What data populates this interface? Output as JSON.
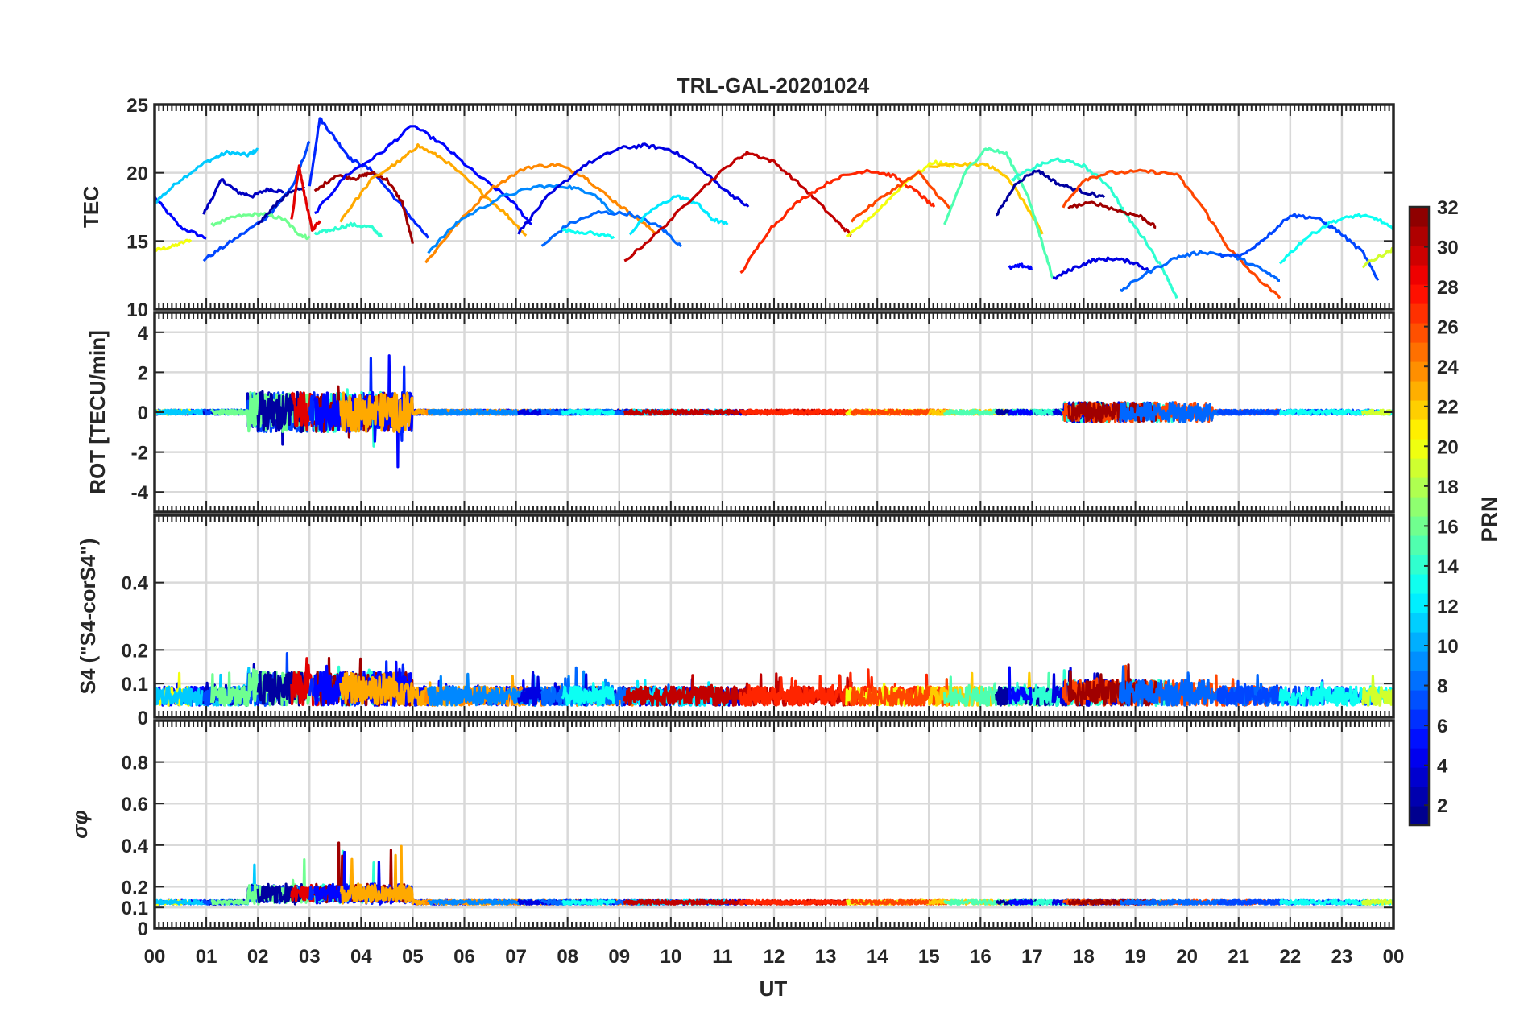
{
  "chart_data": {
    "type": "line",
    "title": "TRL-GAL-20201024",
    "xlabel": "UT",
    "xlim": [
      0,
      24
    ],
    "x_ticks": [
      "00",
      "01",
      "02",
      "03",
      "04",
      "05",
      "06",
      "07",
      "08",
      "09",
      "10",
      "11",
      "12",
      "13",
      "14",
      "15",
      "16",
      "17",
      "18",
      "19",
      "20",
      "21",
      "22",
      "23",
      "00"
    ],
    "grid": true,
    "colormap": "jet",
    "colorbar": {
      "label": "PRN",
      "range": [
        1,
        32
      ],
      "levels": 32,
      "ticks": [
        "2",
        "4",
        "6",
        "8",
        "10",
        "12",
        "14",
        "16",
        "18",
        "20",
        "22",
        "24",
        "26",
        "28",
        "30",
        "32"
      ],
      "placement": "right"
    },
    "panels": [
      {
        "id": "tec",
        "ylabel": "TEC",
        "ylim": [
          10,
          25
        ],
        "y_ticks": [
          "10",
          "15",
          "20",
          "25"
        ],
        "series": [
          {
            "prn": 5,
            "x": [
              0.0,
              0.5,
              1.0
            ],
            "y": [
              18.2,
              16.0,
              15.2
            ]
          },
          {
            "prn": 20,
            "x": [
              0.0,
              0.35,
              0.7
            ],
            "y": [
              14.3,
              14.6,
              15.1
            ]
          },
          {
            "prn": 11,
            "x": [
              0.0,
              0.5,
              1.0,
              1.4,
              1.8,
              2.0
            ],
            "y": [
              17.8,
              19.5,
              20.8,
              21.5,
              21.3,
              21.7
            ]
          },
          {
            "prn": 3,
            "x": [
              0.95,
              1.3,
              1.6,
              1.9,
              2.2,
              2.5
            ],
            "y": [
              17.0,
              19.5,
              18.6,
              18.3,
              18.8,
              18.6
            ]
          },
          {
            "prn": 7,
            "x": [
              0.95,
              1.5,
              2.2,
              2.7,
              3.0
            ],
            "y": [
              13.6,
              15.0,
              16.8,
              19.2,
              22.3
            ]
          },
          {
            "prn": 16,
            "x": [
              1.1,
              1.6,
              2.1,
              2.5,
              2.8,
              3.0
            ],
            "y": [
              16.2,
              16.8,
              17.0,
              16.6,
              15.5,
              15.2
            ]
          },
          {
            "prn": 2,
            "x": [
              2.0,
              2.3,
              2.6,
              2.9
            ],
            "y": [
              16.2,
              17.5,
              18.5,
              19.0
            ]
          },
          {
            "prn": 29,
            "x": [
              2.65,
              2.8,
              2.9,
              3.05,
              3.2
            ],
            "y": [
              16.5,
              20.4,
              18.5,
              15.8,
              16.5
            ]
          },
          {
            "prn": 6,
            "x": [
              3.0,
              3.2,
              3.5,
              3.8,
              4.2,
              4.8,
              5.3
            ],
            "y": [
              19.0,
              24.0,
              22.5,
              21.0,
              20.2,
              17.5,
              15.2
            ]
          },
          {
            "prn": 14,
            "x": [
              3.1,
              3.4,
              3.8,
              4.2,
              4.4
            ],
            "y": [
              15.5,
              15.8,
              16.2,
              16.0,
              15.3
            ]
          },
          {
            "prn": 31,
            "x": [
              3.1,
              3.5,
              3.9,
              4.2,
              4.5,
              4.8,
              5.0
            ],
            "y": [
              18.6,
              19.8,
              19.6,
              20.0,
              19.5,
              17.8,
              14.8
            ]
          },
          {
            "prn": 5,
            "x": [
              3.1,
              3.7,
              4.4,
              5.0,
              5.6,
              6.2,
              6.9,
              7.3
            ],
            "y": [
              17.0,
              19.8,
              21.5,
              23.5,
              22.0,
              20.0,
              18.0,
              16.2
            ]
          },
          {
            "prn": 23,
            "x": [
              3.6,
              4.2,
              4.8,
              5.1,
              5.6,
              6.2,
              6.8,
              7.2
            ],
            "y": [
              16.5,
              19.5,
              21.0,
              22.0,
              21.0,
              19.0,
              17.0,
              15.4
            ]
          },
          {
            "prn": 24,
            "x": [
              5.25,
              5.8,
              6.5,
              7.2,
              7.8,
              8.3,
              8.8,
              9.3,
              9.7
            ],
            "y": [
              13.4,
              16.0,
              18.8,
              20.4,
              20.6,
              19.8,
              18.2,
              16.8,
              15.6
            ]
          },
          {
            "prn": 9,
            "x": [
              5.3,
              5.9,
              6.7,
              7.4,
              8.0,
              8.5,
              8.9
            ],
            "y": [
              14.2,
              16.5,
              18.2,
              19.0,
              19.0,
              18.5,
              17.0
            ]
          },
          {
            "prn": 4,
            "x": [
              7.05,
              7.6,
              8.3,
              9.0,
              9.5,
              10.0,
              10.5,
              11.1,
              11.5
            ],
            "y": [
              15.6,
              18.2,
              20.5,
              21.8,
              22.0,
              21.7,
              20.5,
              18.6,
              17.5
            ]
          },
          {
            "prn": 8,
            "x": [
              7.5,
              8.0,
              8.6,
              9.2,
              9.8,
              10.2
            ],
            "y": [
              14.6,
              16.2,
              17.1,
              17.0,
              16.0,
              14.6
            ]
          },
          {
            "prn": 13,
            "x": [
              7.9,
              8.4,
              8.9
            ],
            "y": [
              15.8,
              15.6,
              15.3
            ]
          },
          {
            "prn": 12,
            "x": [
              9.2,
              9.6,
              10.1,
              10.5,
              10.8,
              11.1
            ],
            "y": [
              15.5,
              17.2,
              18.3,
              17.8,
              16.6,
              16.2
            ]
          },
          {
            "prn": 30,
            "x": [
              9.1,
              9.8,
              10.5,
              11.2,
              11.5,
              12.0,
              12.6,
              13.2,
              13.5
            ],
            "y": [
              13.5,
              15.8,
              18.5,
              20.8,
              21.5,
              20.8,
              18.8,
              16.5,
              15.4
            ]
          },
          {
            "prn": 27,
            "x": [
              11.35,
              11.9,
              12.5,
              13.2,
              13.8,
              14.3,
              14.8,
              15.1
            ],
            "y": [
              12.6,
              15.8,
              18.0,
              19.6,
              20.2,
              19.8,
              18.5,
              17.5
            ]
          },
          {
            "prn": 20,
            "x": [
              13.4,
              14.0,
              14.6,
              15.1,
              15.5
            ],
            "y": [
              15.2,
              17.2,
              19.5,
              20.8,
              20.5
            ]
          },
          {
            "prn": 26,
            "x": [
              13.5,
              14.2,
              14.8,
              15.4
            ],
            "y": [
              16.5,
              18.5,
              20.0,
              17.4
            ]
          },
          {
            "prn": 22,
            "x": [
              15.0,
              15.5,
              16.1,
              16.5,
              16.9,
              17.2
            ],
            "y": [
              20.4,
              20.6,
              20.6,
              19.8,
              17.5,
              15.5
            ]
          },
          {
            "prn": 15,
            "x": [
              15.3,
              15.7,
              16.1,
              16.5,
              16.9,
              17.2,
              17.4
            ],
            "y": [
              16.2,
              20.0,
              21.8,
              21.4,
              18.5,
              14.8,
              12.3
            ]
          },
          {
            "prn": 2,
            "x": [
              16.3,
              16.7,
              17.1,
              17.5,
              18.0,
              18.4
            ],
            "y": [
              16.8,
              19.3,
              20.2,
              19.2,
              18.6,
              18.2
            ]
          },
          {
            "prn": 14,
            "x": [
              16.6,
              17.1,
              17.5,
              18.0,
              18.5,
              18.8,
              19.2,
              19.6,
              19.8
            ],
            "y": [
              19.5,
              20.5,
              21.0,
              20.5,
              19.0,
              17.0,
              15.0,
              12.5,
              10.8
            ]
          },
          {
            "prn": 5,
            "x": [
              16.55,
              16.8,
              17.0
            ],
            "y": [
              13.0,
              13.2,
              13.0
            ]
          },
          {
            "prn": 4,
            "x": [
              17.4,
              17.8,
              18.2,
              18.6,
              19.0,
              19.3
            ],
            "y": [
              12.2,
              13.0,
              13.6,
              13.7,
              13.4,
              12.7
            ]
          },
          {
            "prn": 26,
            "x": [
              17.6,
              18.0,
              18.5,
              19.2,
              19.8,
              20.3,
              20.8,
              21.3,
              21.8
            ],
            "y": [
              17.5,
              19.5,
              20.0,
              20.1,
              19.9,
              17.5,
              14.5,
              12.5,
              10.8
            ]
          },
          {
            "prn": 31,
            "x": [
              17.7,
              18.2,
              18.7,
              19.1,
              19.4
            ],
            "y": [
              17.5,
              17.8,
              17.2,
              16.8,
              16.0
            ]
          },
          {
            "prn": 8,
            "x": [
              18.7,
              19.2,
              19.8,
              20.3,
              20.9,
              21.4,
              21.8
            ],
            "y": [
              11.3,
              12.6,
              13.8,
              14.2,
              13.9,
              13.0,
              12.1
            ]
          },
          {
            "prn": 7,
            "x": [
              20.6,
              21.1,
              21.6,
              22.0,
              22.5,
              22.9,
              23.4,
              23.7
            ],
            "y": [
              13.9,
              14.0,
              15.5,
              16.9,
              16.7,
              15.8,
              14.2,
              12.1
            ]
          },
          {
            "prn": 13,
            "x": [
              21.8,
              22.3,
              22.8,
              23.3,
              23.7,
              24.0
            ],
            "y": [
              13.4,
              15.2,
              16.4,
              16.9,
              16.6,
              15.8
            ]
          },
          {
            "prn": 19,
            "x": [
              23.4,
              23.7,
              24.0
            ],
            "y": [
              13.2,
              13.8,
              14.4
            ]
          }
        ]
      },
      {
        "id": "rot",
        "ylabel": "ROT [TECU/min]",
        "ylim": [
          -5,
          5
        ],
        "y_ticks": [
          "-4",
          "-2",
          "0",
          "2",
          "4"
        ]
      },
      {
        "id": "s4",
        "ylabel": "S4 (\"S4-corS4\")",
        "ylim": [
          0,
          0.6
        ],
        "y_ticks": [
          "0",
          "0.1",
          "0.2",
          "0.4"
        ]
      },
      {
        "id": "sigphi",
        "ylabel": "σφ",
        "ylim": [
          0,
          1
        ],
        "y_ticks": [
          "0",
          "0.1",
          "0.2",
          "0.4",
          "0.6",
          "0.8"
        ]
      }
    ]
  }
}
